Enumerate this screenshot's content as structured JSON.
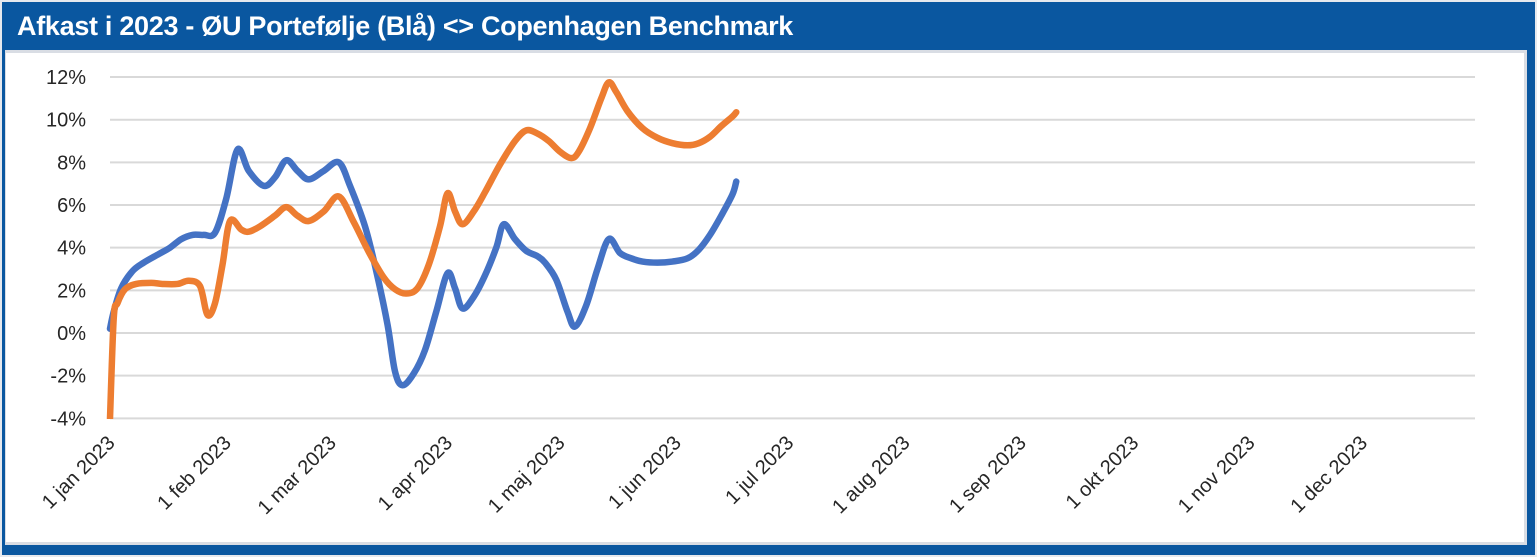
{
  "header": {
    "title": "Afkast i 2023 - ØU Portefølje (Blå) <> Copenhagen Benchmark"
  },
  "colors": {
    "frame_blue": "#0a57a0",
    "title_text": "#ffffff",
    "series_blue": "#4472c4",
    "series_orange": "#ed7d31",
    "gridline": "#d9d9d9",
    "axis_text": "#262626",
    "panel_bg": "#ffffff"
  },
  "chart_data": {
    "type": "line",
    "title": "Afkast i 2023 - ØU Portefølje (Blå) <> Copenhagen Benchmark",
    "smoothed": true,
    "grid": "horizontal",
    "legend_position": "none",
    "unit": "%",
    "y_axis": {
      "ylim": [
        -4,
        12
      ],
      "tick_values": [
        12,
        10,
        8,
        6,
        4,
        2,
        0,
        -2,
        -4
      ],
      "tick_labels": [
        "12%",
        "10%",
        "8%",
        "6%",
        "4%",
        "2%",
        "0%",
        "-2%",
        "-4%"
      ]
    },
    "x_axis": {
      "range": [
        "2023-01-01",
        "2023-12-31"
      ],
      "label_rotation_deg": 45,
      "ticks": [
        {
          "date": "2023-01-01",
          "label": "1 jan 2023"
        },
        {
          "date": "2023-02-01",
          "label": "1 feb 2023"
        },
        {
          "date": "2023-03-01",
          "label": "1 mar 2023"
        },
        {
          "date": "2023-04-01",
          "label": "1 apr 2023"
        },
        {
          "date": "2023-05-01",
          "label": "1 maj 2023"
        },
        {
          "date": "2023-06-01",
          "label": "1 jun 2023"
        },
        {
          "date": "2023-07-01",
          "label": "1 jul 2023"
        },
        {
          "date": "2023-08-01",
          "label": "1 aug 2023"
        },
        {
          "date": "2023-09-01",
          "label": "1 sep 2023"
        },
        {
          "date": "2023-10-01",
          "label": "1 okt 2023"
        },
        {
          "date": "2023-11-01",
          "label": "1 nov 2023"
        },
        {
          "date": "2023-12-01",
          "label": "1 dec 2023"
        }
      ]
    },
    "series": [
      {
        "name": "ØU Portefølje (Blå)",
        "color": "#4472c4",
        "points": [
          [
            "2023-01-01",
            0.2
          ],
          [
            "2023-01-02",
            1.0
          ],
          [
            "2023-01-04",
            2.1
          ],
          [
            "2023-01-07",
            2.9
          ],
          [
            "2023-01-10",
            3.3
          ],
          [
            "2023-01-14",
            3.7
          ],
          [
            "2023-01-17",
            4.0
          ],
          [
            "2023-01-20",
            4.4
          ],
          [
            "2023-01-23",
            4.6
          ],
          [
            "2023-01-26",
            4.6
          ],
          [
            "2023-01-29",
            4.7
          ],
          [
            "2023-02-01",
            6.3
          ],
          [
            "2023-02-04",
            8.6
          ],
          [
            "2023-02-07",
            7.6
          ],
          [
            "2023-02-11",
            6.9
          ],
          [
            "2023-02-14",
            7.3
          ],
          [
            "2023-02-17",
            8.1
          ],
          [
            "2023-02-20",
            7.6
          ],
          [
            "2023-02-23",
            7.2
          ],
          [
            "2023-02-27",
            7.6
          ],
          [
            "2023-03-03",
            8.0
          ],
          [
            "2023-03-06",
            6.9
          ],
          [
            "2023-03-10",
            5.0
          ],
          [
            "2023-03-13",
            2.9
          ],
          [
            "2023-03-16",
            0.4
          ],
          [
            "2023-03-18",
            -1.8
          ],
          [
            "2023-03-20",
            -2.45
          ],
          [
            "2023-03-23",
            -1.9
          ],
          [
            "2023-03-26",
            -0.8
          ],
          [
            "2023-03-29",
            1.0
          ],
          [
            "2023-04-01",
            2.8
          ],
          [
            "2023-04-03",
            2.1
          ],
          [
            "2023-04-05",
            1.15
          ],
          [
            "2023-04-08",
            1.7
          ],
          [
            "2023-04-11",
            2.7
          ],
          [
            "2023-04-14",
            4.0
          ],
          [
            "2023-04-16",
            5.1
          ],
          [
            "2023-04-19",
            4.4
          ],
          [
            "2023-04-22",
            3.85
          ],
          [
            "2023-04-25",
            3.6
          ],
          [
            "2023-04-27",
            3.3
          ],
          [
            "2023-04-30",
            2.5
          ],
          [
            "2023-05-03",
            1.0
          ],
          [
            "2023-05-05",
            0.3
          ],
          [
            "2023-05-08",
            1.3
          ],
          [
            "2023-05-11",
            3.0
          ],
          [
            "2023-05-14",
            4.4
          ],
          [
            "2023-05-17",
            3.75
          ],
          [
            "2023-05-20",
            3.5
          ],
          [
            "2023-05-23",
            3.35
          ],
          [
            "2023-05-27",
            3.3
          ],
          [
            "2023-05-31",
            3.35
          ],
          [
            "2023-06-04",
            3.5
          ],
          [
            "2023-06-07",
            3.9
          ],
          [
            "2023-06-10",
            4.6
          ],
          [
            "2023-06-13",
            5.5
          ],
          [
            "2023-06-16",
            6.5
          ],
          [
            "2023-06-17",
            7.1
          ]
        ]
      },
      {
        "name": "Copenhagen Benchmark",
        "color": "#ed7d31",
        "points": [
          [
            "2023-01-01",
            -4.0
          ],
          [
            "2023-01-02",
            0.7
          ],
          [
            "2023-01-03",
            1.4
          ],
          [
            "2023-01-05",
            2.05
          ],
          [
            "2023-01-08",
            2.3
          ],
          [
            "2023-01-12",
            2.35
          ],
          [
            "2023-01-15",
            2.3
          ],
          [
            "2023-01-19",
            2.3
          ],
          [
            "2023-01-22",
            2.45
          ],
          [
            "2023-01-25",
            2.2
          ],
          [
            "2023-01-27",
            0.85
          ],
          [
            "2023-01-29",
            1.4
          ],
          [
            "2023-01-31",
            3.2
          ],
          [
            "2023-02-02",
            5.25
          ],
          [
            "2023-02-05",
            4.85
          ],
          [
            "2023-02-07",
            4.75
          ],
          [
            "2023-02-10",
            5.0
          ],
          [
            "2023-02-14",
            5.5
          ],
          [
            "2023-02-17",
            5.9
          ],
          [
            "2023-02-20",
            5.5
          ],
          [
            "2023-02-23",
            5.25
          ],
          [
            "2023-02-27",
            5.7
          ],
          [
            "2023-03-03",
            6.4
          ],
          [
            "2023-03-07",
            5.2
          ],
          [
            "2023-03-11",
            3.8
          ],
          [
            "2023-03-15",
            2.6
          ],
          [
            "2023-03-18",
            2.05
          ],
          [
            "2023-03-21",
            1.85
          ],
          [
            "2023-03-24",
            2.1
          ],
          [
            "2023-03-27",
            3.2
          ],
          [
            "2023-03-30",
            5.0
          ],
          [
            "2023-04-01",
            6.55
          ],
          [
            "2023-04-03",
            5.7
          ],
          [
            "2023-04-05",
            5.1
          ],
          [
            "2023-04-08",
            5.7
          ],
          [
            "2023-04-11",
            6.6
          ],
          [
            "2023-04-15",
            7.9
          ],
          [
            "2023-04-19",
            9.0
          ],
          [
            "2023-04-22",
            9.5
          ],
          [
            "2023-04-25",
            9.35
          ],
          [
            "2023-04-28",
            9.0
          ],
          [
            "2023-05-01",
            8.5
          ],
          [
            "2023-05-04",
            8.2
          ],
          [
            "2023-05-06",
            8.5
          ],
          [
            "2023-05-09",
            9.6
          ],
          [
            "2023-05-12",
            11.0
          ],
          [
            "2023-05-14",
            11.75
          ],
          [
            "2023-05-16",
            11.3
          ],
          [
            "2023-05-19",
            10.4
          ],
          [
            "2023-05-23",
            9.6
          ],
          [
            "2023-05-27",
            9.15
          ],
          [
            "2023-05-31",
            8.9
          ],
          [
            "2023-06-04",
            8.8
          ],
          [
            "2023-06-07",
            8.9
          ],
          [
            "2023-06-10",
            9.2
          ],
          [
            "2023-06-13",
            9.7
          ],
          [
            "2023-06-16",
            10.15
          ],
          [
            "2023-06-17",
            10.35
          ]
        ]
      }
    ]
  }
}
